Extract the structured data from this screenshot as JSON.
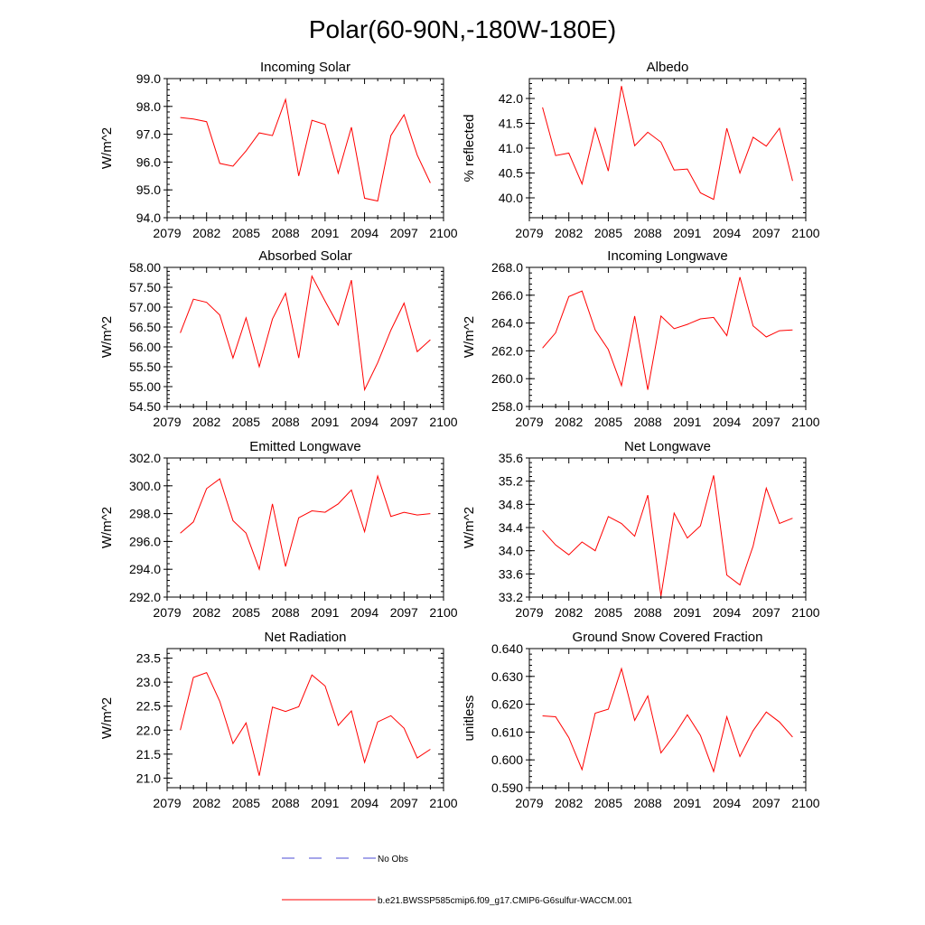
{
  "page": {
    "title": "Polar(60-90N,-180W-180E)"
  },
  "legend": {
    "entries": [
      {
        "label": "No Obs",
        "color": "#4b4bd6",
        "style": "dashed"
      },
      {
        "label": "b.e21.BWSSP585cmip6.f09_g17.CMIP6-G6sulfur-WACCM.001",
        "color": "#ff0000",
        "style": "solid"
      }
    ]
  },
  "chart_data": [
    {
      "type": "line",
      "title": "Incoming Solar",
      "ylabel": "W/m^2",
      "xlim": [
        2079,
        2100
      ],
      "xticks": [
        2079,
        2082,
        2085,
        2088,
        2091,
        2094,
        2097,
        2100
      ],
      "ylim": [
        94.0,
        99.0
      ],
      "yticks": [
        94.0,
        95.0,
        96.0,
        97.0,
        98.0,
        99.0
      ],
      "ytick_labels": [
        "94.0",
        "95.0",
        "96.0",
        "97.0",
        "98.0",
        "99.0"
      ],
      "x": [
        2080,
        2081,
        2082,
        2083,
        2084,
        2085,
        2086,
        2087,
        2088,
        2089,
        2090,
        2091,
        2092,
        2093,
        2094,
        2095,
        2096,
        2097,
        2098,
        2099
      ],
      "series": [
        {
          "color": "#ff0000",
          "values": [
            97.6,
            97.55,
            97.45,
            95.95,
            95.85,
            96.4,
            97.05,
            96.95,
            98.25,
            95.5,
            97.5,
            97.35,
            95.6,
            97.25,
            94.7,
            94.6,
            96.95,
            97.7,
            96.25,
            95.25
          ]
        }
      ]
    },
    {
      "type": "line",
      "title": "Albedo",
      "ylabel": "% reflected",
      "xlim": [
        2079,
        2100
      ],
      "xticks": [
        2079,
        2082,
        2085,
        2088,
        2091,
        2094,
        2097,
        2100
      ],
      "ylim": [
        39.6,
        42.4
      ],
      "yticks": [
        40.0,
        40.5,
        41.0,
        41.5,
        42.0
      ],
      "ytick_labels": [
        "40.0",
        "40.5",
        "41.0",
        "41.5",
        "42.0"
      ],
      "x": [
        2080,
        2081,
        2082,
        2083,
        2084,
        2085,
        2086,
        2087,
        2088,
        2089,
        2090,
        2091,
        2092,
        2093,
        2094,
        2095,
        2096,
        2097,
        2098,
        2099
      ],
      "series": [
        {
          "color": "#ff0000",
          "values": [
            41.82,
            40.85,
            40.9,
            40.28,
            41.4,
            40.54,
            42.25,
            41.05,
            41.32,
            41.12,
            40.56,
            40.58,
            40.1,
            39.97,
            41.4,
            40.5,
            41.22,
            41.04,
            41.4,
            40.34
          ]
        }
      ]
    },
    {
      "type": "line",
      "title": "Absorbed Solar",
      "ylabel": "W/m^2",
      "xlim": [
        2079,
        2100
      ],
      "xticks": [
        2079,
        2082,
        2085,
        2088,
        2091,
        2094,
        2097,
        2100
      ],
      "ylim": [
        54.5,
        58.0
      ],
      "yticks": [
        54.5,
        55.0,
        55.5,
        56.0,
        56.5,
        57.0,
        57.5,
        58.0
      ],
      "ytick_labels": [
        "54.50",
        "55.00",
        "55.50",
        "56.00",
        "56.50",
        "57.00",
        "57.50",
        "58.00"
      ],
      "x": [
        2080,
        2081,
        2082,
        2083,
        2084,
        2085,
        2086,
        2087,
        2088,
        2089,
        2090,
        2091,
        2092,
        2093,
        2094,
        2095,
        2096,
        2097,
        2098,
        2099
      ],
      "series": [
        {
          "color": "#ff0000",
          "values": [
            56.35,
            57.2,
            57.12,
            56.8,
            55.72,
            56.73,
            55.5,
            56.7,
            57.35,
            55.72,
            57.78,
            57.15,
            56.55,
            57.68,
            54.92,
            55.6,
            56.42,
            57.1,
            55.88,
            56.18
          ]
        }
      ]
    },
    {
      "type": "line",
      "title": "Incoming Longwave",
      "ylabel": "W/m^2",
      "xlim": [
        2079,
        2100
      ],
      "xticks": [
        2079,
        2082,
        2085,
        2088,
        2091,
        2094,
        2097,
        2100
      ],
      "ylim": [
        258.0,
        268.0
      ],
      "yticks": [
        258.0,
        260.0,
        262.0,
        264.0,
        266.0,
        268.0
      ],
      "ytick_labels": [
        "258.0",
        "260.0",
        "262.0",
        "264.0",
        "266.0",
        "268.0"
      ],
      "x": [
        2080,
        2081,
        2082,
        2083,
        2084,
        2085,
        2086,
        2087,
        2088,
        2089,
        2090,
        2091,
        2092,
        2093,
        2094,
        2095,
        2096,
        2097,
        2098,
        2099
      ],
      "series": [
        {
          "color": "#ff0000",
          "values": [
            262.2,
            263.3,
            265.9,
            266.3,
            263.5,
            262.1,
            259.5,
            264.5,
            259.2,
            264.5,
            263.6,
            263.9,
            264.3,
            264.4,
            263.1,
            267.3,
            263.8,
            263.0,
            263.45,
            263.5
          ]
        }
      ]
    },
    {
      "type": "line",
      "title": "Emitted Longwave",
      "ylabel": "W/m^2",
      "xlim": [
        2079,
        2100
      ],
      "xticks": [
        2079,
        2082,
        2085,
        2088,
        2091,
        2094,
        2097,
        2100
      ],
      "ylim": [
        292.0,
        302.0
      ],
      "yticks": [
        292.0,
        294.0,
        296.0,
        298.0,
        300.0,
        302.0
      ],
      "ytick_labels": [
        "292.0",
        "294.0",
        "296.0",
        "298.0",
        "300.0",
        "302.0"
      ],
      "x": [
        2080,
        2081,
        2082,
        2083,
        2084,
        2085,
        2086,
        2087,
        2088,
        2089,
        2090,
        2091,
        2092,
        2093,
        2094,
        2095,
        2096,
        2097,
        2098,
        2099
      ],
      "series": [
        {
          "color": "#ff0000",
          "values": [
            296.6,
            297.4,
            299.8,
            300.5,
            297.5,
            296.6,
            294.0,
            298.7,
            294.2,
            297.7,
            298.2,
            298.1,
            298.7,
            299.7,
            296.7,
            300.7,
            297.8,
            298.1,
            297.9,
            298.0
          ]
        }
      ]
    },
    {
      "type": "line",
      "title": "Net Longwave",
      "ylabel": "W/m^2",
      "xlim": [
        2079,
        2100
      ],
      "xticks": [
        2079,
        2082,
        2085,
        2088,
        2091,
        2094,
        2097,
        2100
      ],
      "ylim": [
        33.2,
        35.6
      ],
      "yticks": [
        33.2,
        33.6,
        34.0,
        34.4,
        34.8,
        35.2,
        35.6
      ],
      "ytick_labels": [
        "33.2",
        "33.6",
        "34.0",
        "34.4",
        "34.8",
        "35.2",
        "35.6"
      ],
      "x": [
        2080,
        2081,
        2082,
        2083,
        2084,
        2085,
        2086,
        2087,
        2088,
        2089,
        2090,
        2091,
        2092,
        2093,
        2094,
        2095,
        2096,
        2097,
        2098,
        2099
      ],
      "series": [
        {
          "color": "#ff0000",
          "values": [
            34.35,
            34.1,
            33.93,
            34.15,
            34.0,
            34.59,
            34.47,
            34.25,
            34.96,
            33.22,
            34.65,
            34.22,
            34.43,
            35.3,
            33.58,
            33.41,
            34.08,
            35.08,
            34.47,
            34.56
          ]
        }
      ]
    },
    {
      "type": "line",
      "title": "Net Radiation",
      "ylabel": "W/m^2",
      "xlim": [
        2079,
        2100
      ],
      "xticks": [
        2079,
        2082,
        2085,
        2088,
        2091,
        2094,
        2097,
        2100
      ],
      "ylim": [
        20.8,
        23.7
      ],
      "yticks": [
        21.0,
        21.5,
        22.0,
        22.5,
        23.0,
        23.5
      ],
      "ytick_labels": [
        "21.0",
        "21.5",
        "22.0",
        "22.5",
        "23.0",
        "23.5"
      ],
      "x": [
        2080,
        2081,
        2082,
        2083,
        2084,
        2085,
        2086,
        2087,
        2088,
        2089,
        2090,
        2091,
        2092,
        2093,
        2094,
        2095,
        2096,
        2097,
        2098,
        2099
      ],
      "series": [
        {
          "color": "#ff0000",
          "values": [
            22.0,
            23.1,
            23.2,
            22.6,
            21.72,
            22.15,
            21.05,
            22.48,
            22.39,
            22.49,
            23.15,
            22.92,
            22.1,
            22.4,
            21.33,
            22.17,
            22.3,
            22.04,
            21.42,
            21.6
          ]
        }
      ]
    },
    {
      "type": "line",
      "title": "Ground Snow Covered Fraction",
      "ylabel": "unitless",
      "xlim": [
        2079,
        2100
      ],
      "xticks": [
        2079,
        2082,
        2085,
        2088,
        2091,
        2094,
        2097,
        2100
      ],
      "ylim": [
        0.59,
        0.64
      ],
      "yticks": [
        0.59,
        0.6,
        0.61,
        0.62,
        0.63,
        0.64
      ],
      "ytick_labels": [
        "0.590",
        "0.600",
        "0.610",
        "0.620",
        "0.630",
        "0.640"
      ],
      "x": [
        2080,
        2081,
        2082,
        2083,
        2084,
        2085,
        2086,
        2087,
        2088,
        2089,
        2090,
        2091,
        2092,
        2093,
        2094,
        2095,
        2096,
        2097,
        2098,
        2099
      ],
      "series": [
        {
          "color": "#ff0000",
          "values": [
            0.6158,
            0.6155,
            0.608,
            0.5965,
            0.6168,
            0.6182,
            0.6328,
            0.6142,
            0.623,
            0.6025,
            0.6088,
            0.6162,
            0.6088,
            0.5958,
            0.6155,
            0.6012,
            0.6105,
            0.6172,
            0.6136,
            0.6082
          ]
        }
      ]
    }
  ]
}
